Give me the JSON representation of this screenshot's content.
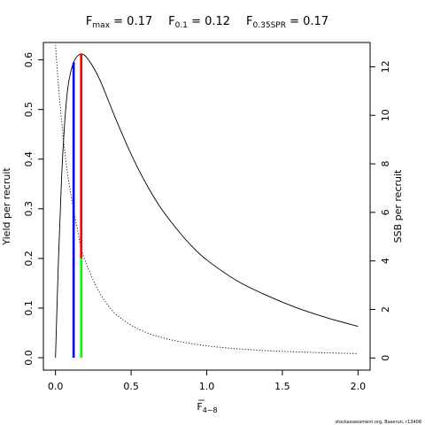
{
  "title": {
    "fmax": {
      "main": "F",
      "sub": "max",
      "value": " = 0.17"
    },
    "f01": {
      "main": "F",
      "sub": "0.1",
      "value": " = 0.12"
    },
    "fspr": {
      "main": "F",
      "sub": "0.35SPR",
      "value": " = 0.17"
    }
  },
  "credit": "stockassessment.org, Baserun, r13408",
  "chart_data": {
    "type": "line",
    "xlabel": {
      "main": "F",
      "sub": "4−8",
      "overline": true
    },
    "ylabel_left": "Yield per recruit",
    "ylabel_right": "SSB per recruit",
    "xlim": [
      -0.08,
      2.08
    ],
    "ylim_left": [
      -0.025,
      0.635
    ],
    "ylim_right": [
      -0.5,
      13.0
    ],
    "x_ticks": [
      0,
      0.5,
      1,
      1.5,
      2
    ],
    "x_tick_labels": [
      "0.0",
      "0.5",
      "1.0",
      "1.5",
      "2.0"
    ],
    "y_left_ticks": [
      0,
      0.1,
      0.2,
      0.3,
      0.4,
      0.5,
      0.6
    ],
    "y_left_tick_labels": [
      "0.0",
      "0.1",
      "0.2",
      "0.3",
      "0.4",
      "0.5",
      "0.6"
    ],
    "y_right_ticks": [
      0,
      2,
      4,
      6,
      8,
      10,
      12
    ],
    "y_right_tick_labels": [
      "0",
      "2",
      "4",
      "6",
      "8",
      "10",
      "12"
    ],
    "series": [
      {
        "axis": "left",
        "style": "solid",
        "color": "#000000",
        "x": [
          0,
          0.02,
          0.04,
          0.06,
          0.08,
          0.1,
          0.12,
          0.14,
          0.16,
          0.17,
          0.2,
          0.25,
          0.3,
          0.4,
          0.5,
          0.6,
          0.7,
          0.8,
          0.9,
          1.0,
          1.2,
          1.4,
          1.6,
          1.8,
          2.0
        ],
        "values": [
          0.0,
          0.2,
          0.36,
          0.47,
          0.54,
          0.575,
          0.595,
          0.606,
          0.611,
          0.612,
          0.607,
          0.585,
          0.555,
          0.48,
          0.41,
          0.35,
          0.3,
          0.26,
          0.225,
          0.197,
          0.155,
          0.125,
          0.1,
          0.08,
          0.063
        ]
      },
      {
        "axis": "right",
        "style": "dotted",
        "color": "#000000",
        "x": [
          0,
          0.02,
          0.04,
          0.06,
          0.08,
          0.1,
          0.12,
          0.15,
          0.17,
          0.2,
          0.25,
          0.3,
          0.35,
          0.4,
          0.5,
          0.6,
          0.7,
          0.8,
          1.0,
          1.2,
          1.4,
          1.6,
          1.8,
          2.0
        ],
        "values": [
          12.9,
          11.2,
          9.8,
          8.6,
          7.6,
          6.8,
          6.1,
          5.15,
          4.5,
          3.95,
          3.2,
          2.6,
          2.15,
          1.8,
          1.35,
          1.05,
          0.85,
          0.7,
          0.5,
          0.38,
          0.3,
          0.25,
          0.21,
          0.18
        ]
      }
    ],
    "reference_lines": [
      {
        "label": "F0.1",
        "x": 0.12,
        "y_from": 0,
        "y_to": 0.595,
        "axis": "left",
        "color": "#0000ff"
      },
      {
        "label": "Fmax",
        "x": 0.17,
        "y_from": 0.2,
        "y_to": 0.612,
        "axis": "left",
        "color": "#ff0000"
      },
      {
        "label": "F0.35SPR",
        "x": 0.17,
        "y_from": 0,
        "y_to": 0.2,
        "axis": "left",
        "color": "#00ff00"
      }
    ]
  }
}
